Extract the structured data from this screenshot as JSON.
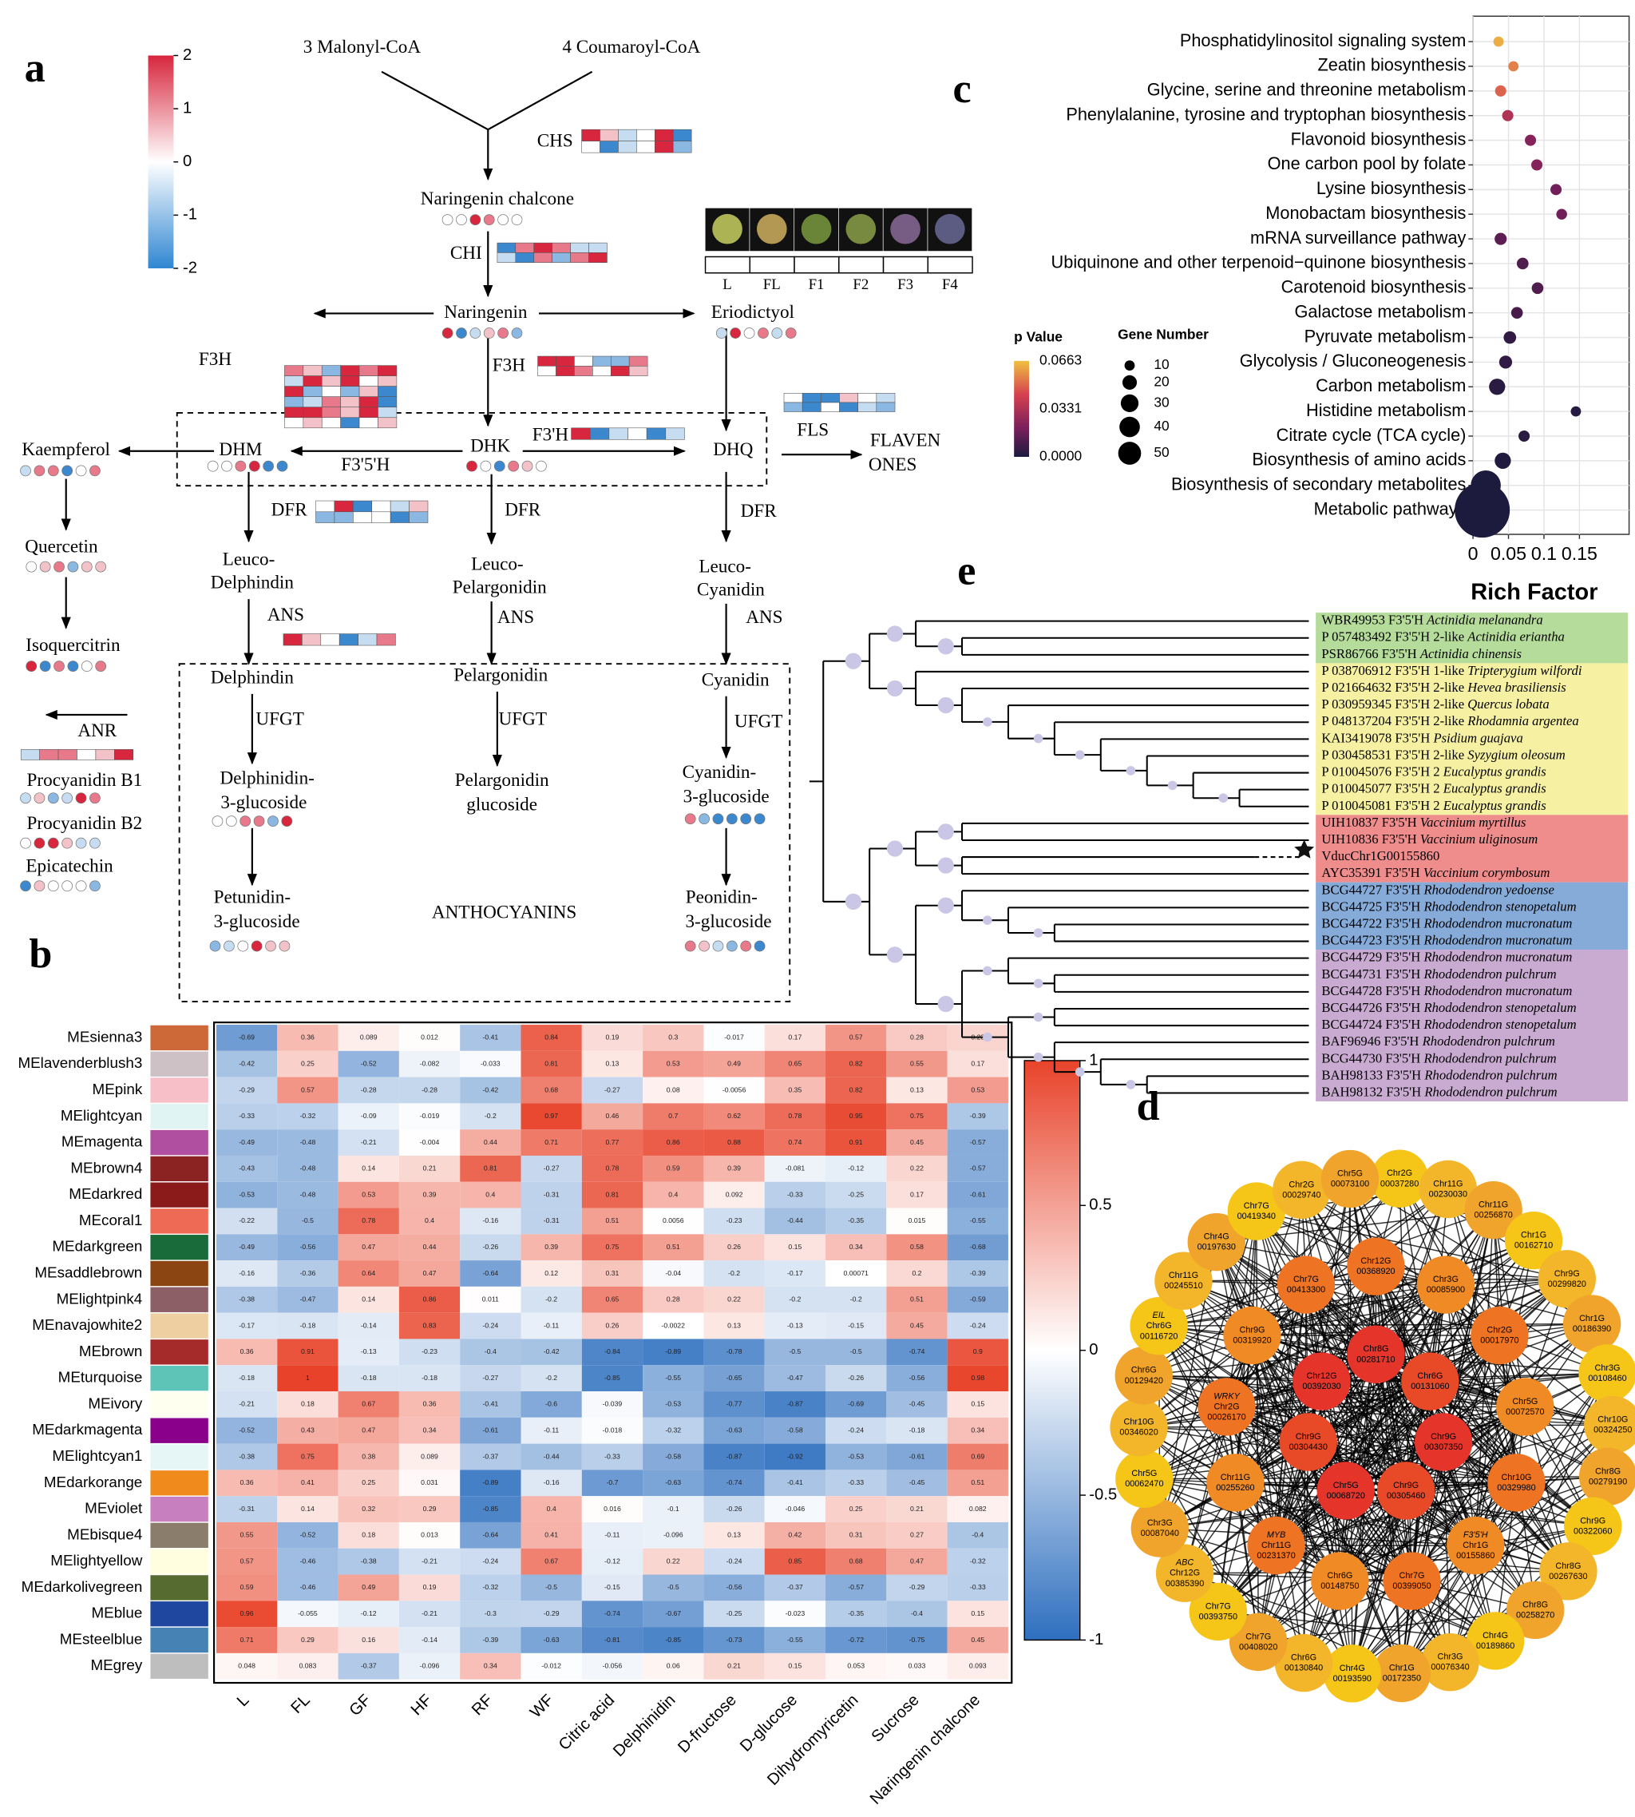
{
  "panels": {
    "a": "a",
    "b": "b",
    "c": "c",
    "d": "d",
    "e": "e"
  },
  "pathway": {
    "colorbar_ticks": [
      2,
      1,
      0,
      -1,
      -2
    ],
    "labels": [
      "3  Malonyl-CoA",
      "4 Coumaroyl-CoA",
      "CHS",
      "Naringenin chalcone",
      "CHI",
      "Naringenin",
      "Eriodictyol",
      "F3H",
      "F3H",
      "Kaempferol",
      "DHM",
      "DHK",
      "DHQ",
      "F3'5'H",
      "F3'H",
      "FLS",
      "FLAVEN",
      "ONES",
      "Quercetin",
      "Isoquercitrin",
      "ANR",
      "Procyanidin B1",
      "Procyanidin B2",
      "Epicatechin",
      "DFR",
      "DFR",
      "DFR",
      "Leuco-",
      "Delphindin",
      "Leuco-",
      "Pelargonidin",
      "Leuco-",
      "Cyanidin",
      "ANS",
      "ANS",
      "ANS",
      "Delphindin",
      "Pelargonidin",
      "Cyanidin",
      "UFGT",
      "UFGT",
      "UFGT",
      "Delphinidin-",
      "3-glucoside",
      "Pelargonidin",
      "glucoside",
      "Cyanidin-",
      "3-glucoside",
      "Petunidin-",
      "3-glucoside",
      "ANTHOCYANINS",
      "Peonidin-",
      "3-glucoside"
    ],
    "stages": [
      "L",
      "FL",
      "F1",
      "F2",
      "F3",
      "F4"
    ]
  },
  "heatmap": {
    "type": "heatmap",
    "rows": [
      "MEsienna3",
      "MElavenderblush3",
      "MEpink",
      "MElightcyan",
      "MEmagenta",
      "MEbrown4",
      "MEdarkred",
      "MEcoral1",
      "MEdarkgreen",
      "MEsaddlebrown",
      "MElightpink4",
      "MEnavajowhite2",
      "MEbrown",
      "MEturquoise",
      "MEivory",
      "MEdarkmagenta",
      "MElightcyan1",
      "MEdarkorange",
      "MEviolet",
      "MEbisque4",
      "MElightyellow",
      "MEdarkolivegreen",
      "MEblue",
      "MEsteelblue",
      "MEgrey"
    ],
    "row_colors": [
      "#cd6839",
      "#cdc1c5",
      "#f7c0c8",
      "#e0f4f4",
      "#b04fa0",
      "#8b2323",
      "#8b1a1a",
      "#ee6a55",
      "#1a6b3a",
      "#8b4513",
      "#8b5f65",
      "#eecfa1",
      "#a52a2a",
      "#5fc4b8",
      "#fffff0",
      "#8b008b",
      "#e6f6f6",
      "#f08a1c",
      "#c87fc0",
      "#8b7d6b",
      "#ffffe0",
      "#556b2f",
      "#1f47a0",
      "#4682b4",
      "#bebebe"
    ],
    "columns": [
      "L",
      "FL",
      "GF",
      "HF",
      "RF",
      "WF",
      "Citric acid",
      "Delphinidin",
      "D-fructose",
      "D-glucose",
      "Dihydromyricetin",
      "Sucrose",
      "Naringenin chalcone"
    ],
    "values": [
      [
        -0.69,
        0.36,
        0.089,
        0.012,
        -0.41,
        0.84,
        0.19,
        0.3,
        -0.017,
        0.17,
        0.57,
        0.28,
        0.23
      ],
      [
        -0.42,
        0.25,
        -0.52,
        -0.082,
        -0.033,
        0.81,
        0.13,
        0.53,
        0.49,
        0.65,
        0.82,
        0.55,
        0.17
      ],
      [
        -0.29,
        0.57,
        -0.28,
        -0.28,
        -0.42,
        0.68,
        -0.27,
        0.08,
        -0.0056,
        0.35,
        0.82,
        0.13,
        0.53
      ],
      [
        -0.33,
        -0.32,
        -0.09,
        -0.019,
        -0.2,
        0.97,
        0.46,
        0.7,
        0.62,
        0.78,
        0.95,
        0.75,
        -0.39
      ],
      [
        -0.49,
        -0.48,
        -0.21,
        -0.004,
        0.44,
        0.71,
        0.77,
        0.86,
        0.88,
        0.74,
        0.91,
        0.45,
        -0.57
      ],
      [
        -0.43,
        -0.48,
        0.14,
        0.21,
        0.81,
        -0.27,
        0.78,
        0.59,
        0.39,
        -0.081,
        -0.12,
        0.22,
        -0.57
      ],
      [
        -0.53,
        -0.48,
        0.53,
        0.39,
        0.4,
        -0.31,
        0.81,
        0.4,
        0.092,
        -0.33,
        -0.25,
        0.17,
        -0.61
      ],
      [
        -0.22,
        -0.5,
        0.78,
        0.4,
        -0.16,
        -0.31,
        0.51,
        0.0056,
        -0.23,
        -0.44,
        -0.35,
        0.015,
        -0.55
      ],
      [
        -0.49,
        -0.56,
        0.47,
        0.44,
        -0.26,
        0.39,
        0.75,
        0.51,
        0.26,
        0.15,
        0.34,
        0.58,
        -0.68
      ],
      [
        -0.16,
        -0.36,
        0.64,
        0.47,
        -0.64,
        0.12,
        0.31,
        -0.04,
        -0.2,
        -0.17,
        0.00071,
        0.2,
        -0.39
      ],
      [
        -0.38,
        -0.47,
        0.14,
        0.86,
        0.011,
        -0.2,
        0.65,
        0.28,
        0.22,
        -0.2,
        -0.2,
        0.51,
        -0.59
      ],
      [
        -0.17,
        -0.18,
        -0.14,
        0.83,
        -0.24,
        -0.11,
        0.26,
        -0.0022,
        0.13,
        -0.13,
        -0.15,
        0.45,
        -0.24
      ],
      [
        0.36,
        0.91,
        -0.13,
        -0.23,
        -0.4,
        -0.42,
        -0.84,
        -0.89,
        -0.78,
        -0.5,
        -0.5,
        -0.74,
        0.9
      ],
      [
        -0.18,
        1,
        -0.18,
        -0.18,
        -0.27,
        -0.2,
        -0.85,
        -0.55,
        -0.65,
        -0.47,
        -0.26,
        -0.56,
        0.98
      ],
      [
        -0.21,
        0.18,
        0.67,
        0.36,
        -0.41,
        -0.6,
        -0.039,
        -0.53,
        -0.77,
        -0.87,
        -0.69,
        -0.45,
        0.15
      ],
      [
        -0.52,
        0.43,
        0.47,
        0.34,
        -0.61,
        -0.11,
        -0.018,
        -0.32,
        -0.63,
        -0.58,
        -0.24,
        -0.18,
        0.34
      ],
      [
        -0.38,
        0.75,
        0.38,
        0.089,
        -0.37,
        -0.44,
        -0.33,
        -0.58,
        -0.87,
        -0.92,
        -0.53,
        -0.61,
        0.69
      ],
      [
        0.36,
        0.41,
        0.25,
        0.031,
        -0.89,
        -0.16,
        -0.7,
        -0.63,
        -0.74,
        -0.41,
        -0.33,
        -0.45,
        0.51
      ],
      [
        -0.31,
        0.14,
        0.32,
        0.29,
        -0.85,
        0.4,
        0.016,
        -0.1,
        -0.26,
        -0.046,
        0.25,
        0.21,
        0.082
      ],
      [
        0.55,
        -0.52,
        0.18,
        0.013,
        -0.64,
        0.41,
        -0.11,
        -0.096,
        0.13,
        0.42,
        0.31,
        0.27,
        -0.4
      ],
      [
        0.57,
        -0.46,
        -0.38,
        -0.21,
        -0.24,
        0.67,
        -0.12,
        0.22,
        -0.24,
        0.85,
        0.68,
        0.47,
        -0.32
      ],
      [
        0.59,
        -0.46,
        0.49,
        0.19,
        -0.32,
        -0.5,
        -0.15,
        -0.5,
        -0.56,
        -0.37,
        -0.57,
        -0.29,
        -0.33
      ],
      [
        0.96,
        -0.055,
        -0.12,
        -0.21,
        -0.3,
        -0.29,
        -0.74,
        -0.67,
        -0.25,
        -0.023,
        -0.35,
        -0.4,
        0.15
      ],
      [
        0.71,
        0.29,
        0.16,
        -0.14,
        -0.39,
        -0.63,
        -0.81,
        -0.85,
        -0.73,
        -0.55,
        -0.72,
        -0.75,
        0.45
      ],
      [
        0.048,
        0.083,
        -0.37,
        -0.096,
        0.34,
        -0.012,
        -0.056,
        0.06,
        0.21,
        0.15,
        0.053,
        0.033,
        0.093
      ]
    ],
    "clim": [
      -1,
      1
    ],
    "cticks": [
      1,
      0.5,
      0,
      -0.5,
      -1
    ]
  },
  "chart_data": {
    "type": "scatter",
    "categories": [
      "Phosphatidylinositol signaling system",
      "Zeatin biosynthesis",
      "Glycine, serine and threonine metabolism",
      "Phenylalanine, tyrosine and tryptophan biosynthesis",
      "Flavonoid biosynthesis",
      "One carbon pool by folate",
      "Lysine biosynthesis",
      "Monobactam biosynthesis",
      "mRNA surveillance pathway",
      "Ubiquinone and other terpenoid−quinone biosynthesis",
      "Carotenoid biosynthesis",
      "Galactose metabolism",
      "Pyruvate metabolism",
      "Glycolysis / Gluconeogenesis",
      "Carbon metabolism",
      "Histidine metabolism",
      "Citrate cycle (TCA cycle)",
      "Biosynthesis of amino acids",
      "Biosynthesis of secondary metabolites",
      "Metabolic pathways"
    ],
    "x": [
      0.036,
      0.057,
      0.039,
      0.049,
      0.081,
      0.09,
      0.117,
      0.125,
      0.039,
      0.07,
      0.091,
      0.062,
      0.052,
      0.046,
      0.034,
      0.145,
      0.072,
      0.042,
      0.018,
      0.013
    ],
    "p_values": [
      0.063,
      0.055,
      0.05,
      0.035,
      0.025,
      0.025,
      0.02,
      0.02,
      0.015,
      0.012,
      0.012,
      0.01,
      0.005,
      0.005,
      0.003,
      0.002,
      0.003,
      0.001,
      0.0001,
      0
    ],
    "gene_numbers": [
      10,
      10,
      12,
      12,
      12,
      12,
      12,
      11,
      14,
      13,
      13,
      13,
      15,
      16,
      25,
      10,
      12,
      25,
      86,
      290
    ],
    "xlim": [
      0,
      0.22
    ],
    "xticks": [
      0,
      0.05,
      0.1,
      0.15
    ],
    "xlabel": "Rich Factor",
    "grid": true,
    "color_legend_title": "p Value",
    "clim": [
      0,
      0.0663
    ],
    "color_ticks": [
      0.0663,
      0.0331,
      {
        "value": 0,
        "label": "0.0000"
      }
    ],
    "size_legend_title": "Gene Number",
    "size_ticks": [
      10,
      20,
      30,
      40,
      50
    ]
  },
  "network": {
    "nodes": [
      {
        "label": [
          "Chr2G",
          "00037280"
        ]
      },
      {
        "label": [
          "Chr11G",
          "00230030"
        ]
      },
      {
        "label": [
          "Chr11G",
          "00256870"
        ]
      },
      {
        "label": [
          "Chr1G",
          "00162710"
        ]
      },
      {
        "label": [
          "Chr9G",
          "00299820"
        ]
      },
      {
        "label": [
          "Chr1G",
          "00186390"
        ]
      },
      {
        "label": [
          "Chr3G",
          "00108460"
        ]
      },
      {
        "label": [
          "Chr10G",
          "00324250"
        ]
      },
      {
        "label": [
          "Chr8G",
          "00279190"
        ]
      },
      {
        "label": [
          "Chr9G",
          "00322060"
        ]
      },
      {
        "label": [
          "Chr8G",
          "00267630"
        ]
      },
      {
        "label": [
          "Chr8G",
          "00258270"
        ]
      },
      {
        "label": [
          "Chr4G",
          "00189860"
        ]
      },
      {
        "label": [
          "Chr3G",
          "00076340"
        ]
      },
      {
        "label": [
          "Chr1G",
          "00172350"
        ]
      },
      {
        "label": [
          "Chr4G",
          "00193590"
        ]
      },
      {
        "label": [
          "Chr6G",
          "00130840"
        ]
      },
      {
        "label": [
          "Chr7G",
          "00408020"
        ]
      },
      {
        "label": [
          "Chr7G",
          "00393750"
        ]
      },
      {
        "label": [
          "ABC",
          "Chr12G",
          "00385390"
        ]
      },
      {
        "label": [
          "Chr3G",
          "00087040"
        ]
      },
      {
        "label": [
          "Chr5G",
          "00062470"
        ]
      },
      {
        "label": [
          "Chr10G",
          "00346020"
        ]
      },
      {
        "label": [
          "Chr6G",
          "00129420"
        ]
      },
      {
        "label": [
          "EIL",
          "Chr6G",
          "00116720"
        ]
      },
      {
        "label": [
          "Chr11G",
          "00245510"
        ]
      },
      {
        "label": [
          "Chr4G",
          "00197630"
        ]
      },
      {
        "label": [
          "Chr7G",
          "00419340"
        ]
      },
      {
        "label": [
          "Chr2G",
          "00029740"
        ]
      },
      {
        "label": [
          "Chr5G",
          "00073100"
        ]
      },
      {
        "label": [
          "Chr12G",
          "00368920"
        ]
      },
      {
        "label": [
          "Chr3G",
          "00085900"
        ]
      },
      {
        "label": [
          "Chr2G",
          "00017970"
        ]
      },
      {
        "label": [
          "Chr5G",
          "00072570"
        ]
      },
      {
        "label": [
          "Chr10G",
          "00329980"
        ]
      },
      {
        "label": [
          "F3'5'H",
          "Chr1G",
          "00155860"
        ]
      },
      {
        "label": [
          "Chr7G",
          "00399050"
        ]
      },
      {
        "label": [
          "Chr6G",
          "00148750"
        ]
      },
      {
        "label": [
          "MYB",
          "Chr11G",
          "00231370"
        ]
      },
      {
        "label": [
          "Chr11G",
          "00255260"
        ]
      },
      {
        "label": [
          "WRKY",
          "Chr2G",
          "00026170"
        ]
      },
      {
        "label": [
          "Chr9G",
          "00319920"
        ]
      },
      {
        "label": [
          "Chr7G",
          "00413300"
        ]
      },
      {
        "label": [
          "Chr8G",
          "00281710"
        ]
      },
      {
        "label": [
          "Chr6G",
          "00131060"
        ]
      },
      {
        "label": [
          "Chr9G",
          "00307350"
        ]
      },
      {
        "label": [
          "Chr9G",
          "00305460"
        ]
      },
      {
        "label": [
          "Chr5G",
          "00068720"
        ]
      },
      {
        "label": [
          "Chr9G",
          "00304430"
        ]
      },
      {
        "label": [
          "Chr12G",
          "00392030"
        ]
      }
    ]
  },
  "tree": {
    "leaves": [
      {
        "id": "WBR49953 F3'5'H",
        "species": "Actinidia melanandra"
      },
      {
        "id": "P 057483492  F3'5'H 2-like",
        "species": "Actinidia eriantha"
      },
      {
        "id": "PSR86766  F3'5'H",
        "species": "Actinidia chinensis"
      },
      {
        "id": "P 038706912  F3'5'H 1-like",
        "species": "Tripterygium wilfordi"
      },
      {
        "id": "P 021664632  F3'5'H 2-like",
        "species": "Hevea brasiliensis"
      },
      {
        "id": "P 030959345  F3'5'H 2-like",
        "species": "Quercus lobata"
      },
      {
        "id": "P 048137204  F3'5'H 2-like",
        "species": "Rhodamnia argentea"
      },
      {
        "id": "KAI3419078  F3'5'H",
        "species": "Psidium guajava"
      },
      {
        "id": "P 030458531  F3'5'H 2-like",
        "species": "Syzygium oleosum"
      },
      {
        "id": "P 010045076  F3'5'H 2",
        "species": "Eucalyptus grandis"
      },
      {
        "id": "P 010045077  F3'5'H 2",
        "species": "Eucalyptus grandis"
      },
      {
        "id": "P 010045081  F3'5'H 2",
        "species": "Eucalyptus grandis"
      },
      {
        "id": "UIH10837  F3'5'H",
        "species": "Vaccinium myrtillus"
      },
      {
        "id": "UIH10836  F3'5'H",
        "species": "Vaccinium uliginosum"
      },
      {
        "id": "VducChr1G00155860"
      },
      {
        "id": "AYC35391  F3'5'H",
        "species": "Vaccinium corymbosum"
      },
      {
        "id": "BCG44727  F3'5'H",
        "species": "Rhododendron yedoense"
      },
      {
        "id": "BCG44725  F3'5'H",
        "species": "Rhododendron stenopetalum"
      },
      {
        "id": "BCG44722  F3'5'H",
        "species": "Rhododendron mucronatum"
      },
      {
        "id": "BCG44723  F3'5'H",
        "species": "Rhododendron mucronatum"
      },
      {
        "id": "BCG44729  F3'5'H",
        "species": "Rhododendron mucronatum"
      },
      {
        "id": "BCG44731  F3'5'H",
        "species": "Rhododendron  pulchrum"
      },
      {
        "id": "BCG44728  F3'5'H",
        "species": "Rhododendron mucronatum"
      },
      {
        "id": "BCG44726  F3'5'H",
        "species": "Rhododendron stenopetalum"
      },
      {
        "id": "BCG44724  F3'5'H",
        "species": "Rhododendron stenopetalum"
      },
      {
        "id": "BAF96946  F3'5'H",
        "species": "Rhododendron  pulchrum"
      },
      {
        "id": "BCG44730  F3'5'H",
        "species": "Rhododendron  pulchrum"
      },
      {
        "id": "BAH98133  F3'5'H",
        "species": "Rhododendron  pulchrum"
      },
      {
        "id": "BAH98132  F3'5'H",
        "species": "Rhododendron  pulchrum"
      }
    ]
  }
}
